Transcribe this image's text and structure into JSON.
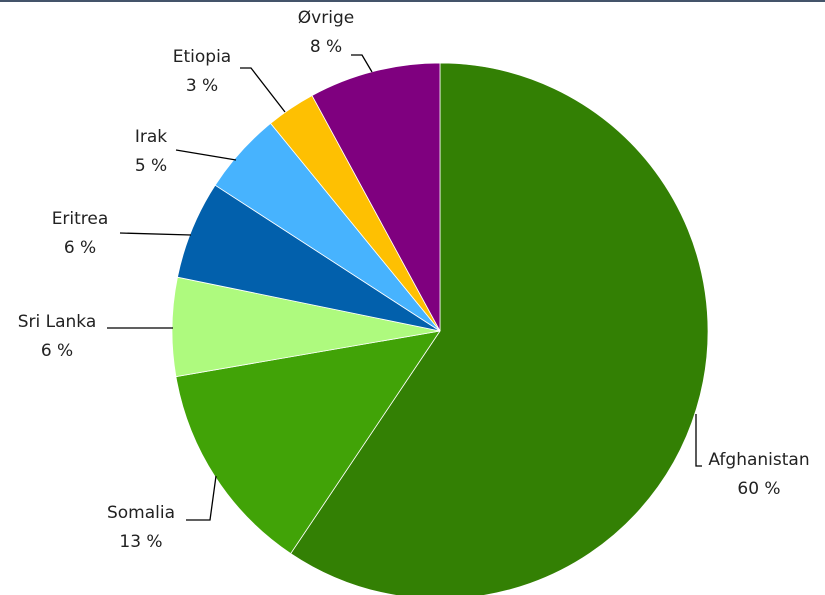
{
  "chart_data": {
    "type": "pie",
    "title": "",
    "start_angle_deg": 0,
    "direction": "clockwise",
    "slices": [
      {
        "label": "Afghanistan",
        "value": 60,
        "value_label": "60 %",
        "color": "#338004"
      },
      {
        "label": "Somalia",
        "value": 13,
        "value_label": "13 %",
        "color": "#41a307"
      },
      {
        "label": "Sri Lanka",
        "value": 6,
        "value_label": "6 %",
        "color": "#aefa7e"
      },
      {
        "label": "Eritrea",
        "value": 6,
        "value_label": "6 %",
        "color": "#0260ac"
      },
      {
        "label": "Irak",
        "value": 5,
        "value_label": "5 %",
        "color": "#47b3fe"
      },
      {
        "label": "Etiopia",
        "value": 3,
        "value_label": "3 %",
        "color": "#fec002"
      },
      {
        "label": "Øvrige",
        "value": 8,
        "value_label": "8 %",
        "color": "#7f007f"
      }
    ],
    "legend": "none",
    "data_labels": "outside-with-leader-lines"
  }
}
